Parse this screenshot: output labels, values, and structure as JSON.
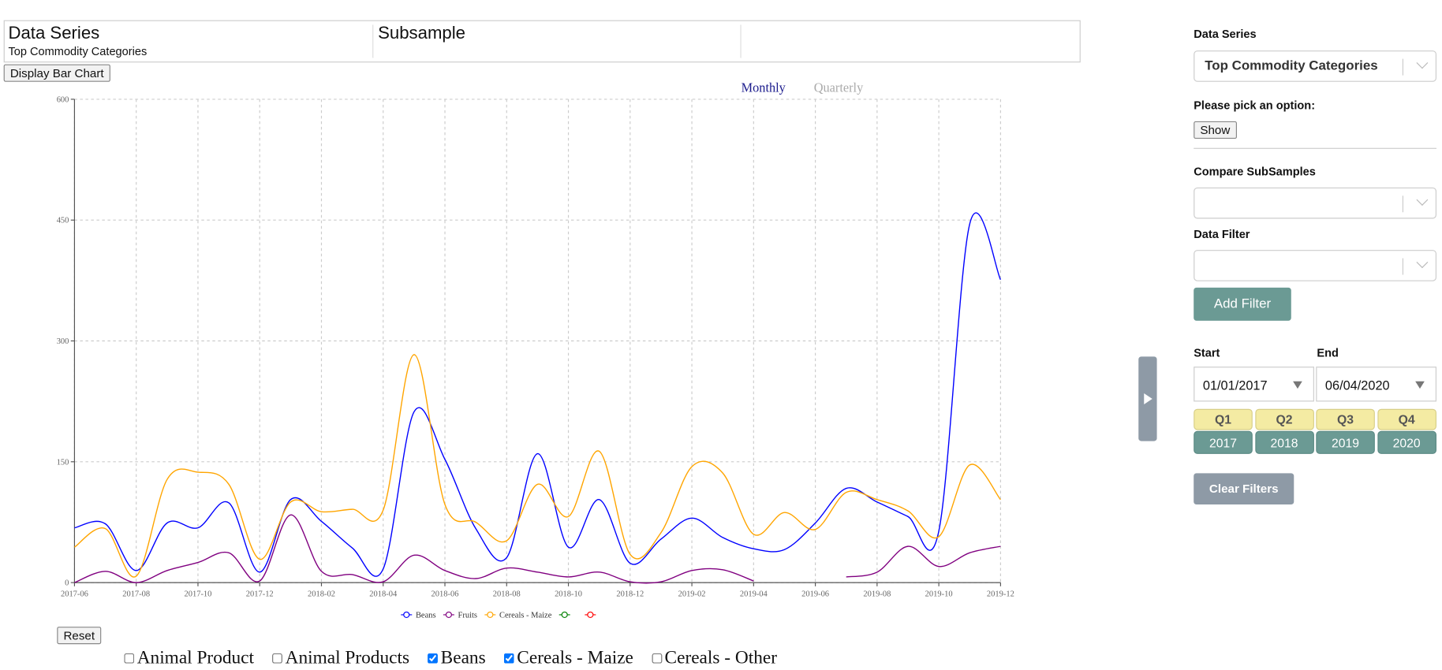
{
  "header": {
    "columns": [
      {
        "title": "Data Series",
        "subtitle": "Top Commodity Categories"
      },
      {
        "title": "Subsample"
      }
    ]
  },
  "buttons": {
    "bar_chart": "Display Bar Chart",
    "reset": "Reset"
  },
  "period_toggle": [
    "Monthly",
    "Quarterly"
  ],
  "chart_data": {
    "type": "line",
    "x": [
      "2017-06",
      "2017-07",
      "2017-08",
      "2017-09",
      "2017-10",
      "2017-11",
      "2017-12",
      "2018-01",
      "2018-02",
      "2018-03",
      "2018-04",
      "2018-05",
      "2018-06",
      "2018-07",
      "2018-08",
      "2018-09",
      "2018-10",
      "2018-11",
      "2018-12",
      "2019-01",
      "2019-02",
      "2019-03",
      "2019-04",
      "2019-05",
      "2019-06",
      "2019-07",
      "2019-08",
      "2019-09",
      "2019-10",
      "2019-11",
      "2019-12"
    ],
    "series": [
      {
        "name": "Beans",
        "color": "#0000ff",
        "values": [
          68,
          73,
          15,
          74,
          68,
          99,
          13,
          103,
          76,
          43,
          17,
          212,
          153,
          67,
          31,
          160,
          44,
          103,
          24,
          54,
          80,
          56,
          42,
          41,
          74,
          117,
          100,
          82,
          64,
          445,
          376
        ]
      },
      {
        "name": "Fruits",
        "color": "#800080",
        "values": [
          0,
          14,
          0,
          15,
          25,
          37,
          2,
          84,
          14,
          10,
          1,
          34,
          15,
          5,
          18,
          13,
          7,
          13,
          1,
          1,
          15,
          16,
          2,
          null,
          null,
          7,
          13,
          45,
          20,
          37,
          45
        ]
      },
      {
        "name": "Cereals - Maize",
        "color": "#ffa500",
        "values": [
          44,
          67,
          8,
          128,
          137,
          122,
          29,
          100,
          88,
          91,
          90,
          283,
          97,
          75,
          52,
          122,
          82,
          163,
          35,
          62,
          144,
          136,
          60,
          87,
          66,
          112,
          103,
          89,
          57,
          146,
          103
        ]
      },
      {
        "color": "#008000",
        "values": [
          null,
          null,
          null,
          null,
          null,
          null,
          null,
          null,
          null,
          null,
          null,
          null,
          null,
          null,
          null,
          null,
          null,
          null,
          null,
          null,
          null,
          null,
          null,
          null,
          null,
          null,
          null,
          null,
          null,
          null,
          null
        ]
      },
      {
        "color": "#ff0000",
        "values": [
          null,
          null,
          null,
          null,
          null,
          null,
          null,
          null,
          null,
          null,
          null,
          null,
          null,
          null,
          null,
          null,
          null,
          null,
          null,
          null,
          null,
          null,
          null,
          null,
          null,
          null,
          null,
          null,
          null,
          null,
          null
        ]
      }
    ],
    "ylim": [
      0,
      600
    ],
    "yticks": [
      0,
      150,
      300,
      450,
      600
    ],
    "grid": true
  },
  "checkboxes": [
    {
      "label": "Animal Product",
      "checked": false
    },
    {
      "label": "Animal Products",
      "checked": false
    },
    {
      "label": "Beans",
      "checked": true
    },
    {
      "label": "Cereals - Maize",
      "checked": true
    },
    {
      "label": "Cereals - Other",
      "checked": false
    }
  ],
  "sidebar": {
    "series_label": "Data Series",
    "series_value": "Top Commodity Categories",
    "pick_label": "Please pick an option:",
    "show": "Show",
    "compare_label": "Compare SubSamples",
    "filter_label": "Data Filter",
    "add_filter": "Add Filter",
    "start_label": "Start",
    "end_label": "End",
    "start_date": "01/01/2017",
    "end_date": "06/04/2020",
    "quarters": [
      "Q1",
      "Q2",
      "Q3",
      "Q4"
    ],
    "years": [
      "2017",
      "2018",
      "2019",
      "2020"
    ],
    "clear_filters": "Clear Filters"
  }
}
